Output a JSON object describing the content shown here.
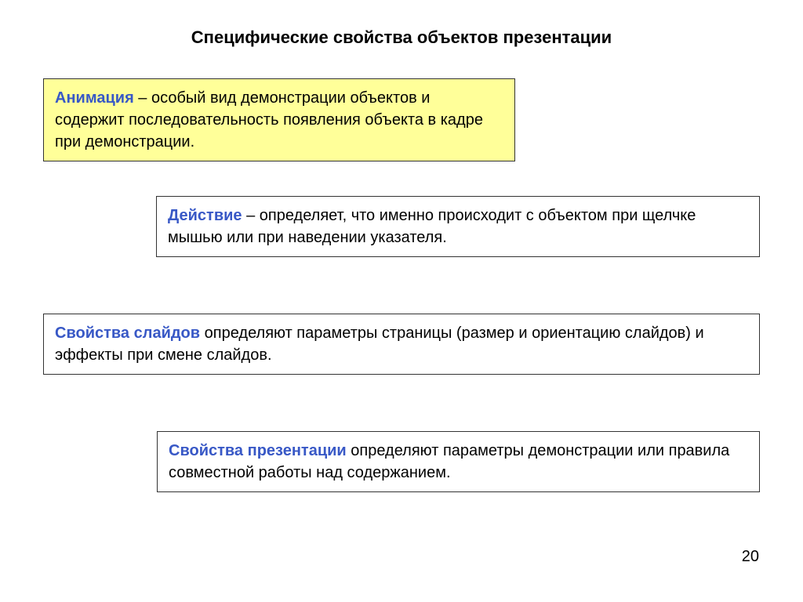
{
  "title": "Специфические свойства объектов презентации",
  "box1": {
    "term": "Анимация",
    "text": " – особый вид демонстрации объектов и содержит последовательность появления объекта в кадре при демонстрации."
  },
  "box2": {
    "term": "Действие",
    "text": " – определяет, что именно происходит с объектом при щелчке мышью или при наведении указателя."
  },
  "box3": {
    "term": "Свойства слайдов",
    "text": " определяют параметры страницы (размер и ориентацию слайдов) и эффекты при смене слайдов."
  },
  "box4": {
    "term": "Свойства презентации",
    "text": " определяют параметры демонстрации или правила совместной работы над содержанием."
  },
  "pageNumber": "20"
}
